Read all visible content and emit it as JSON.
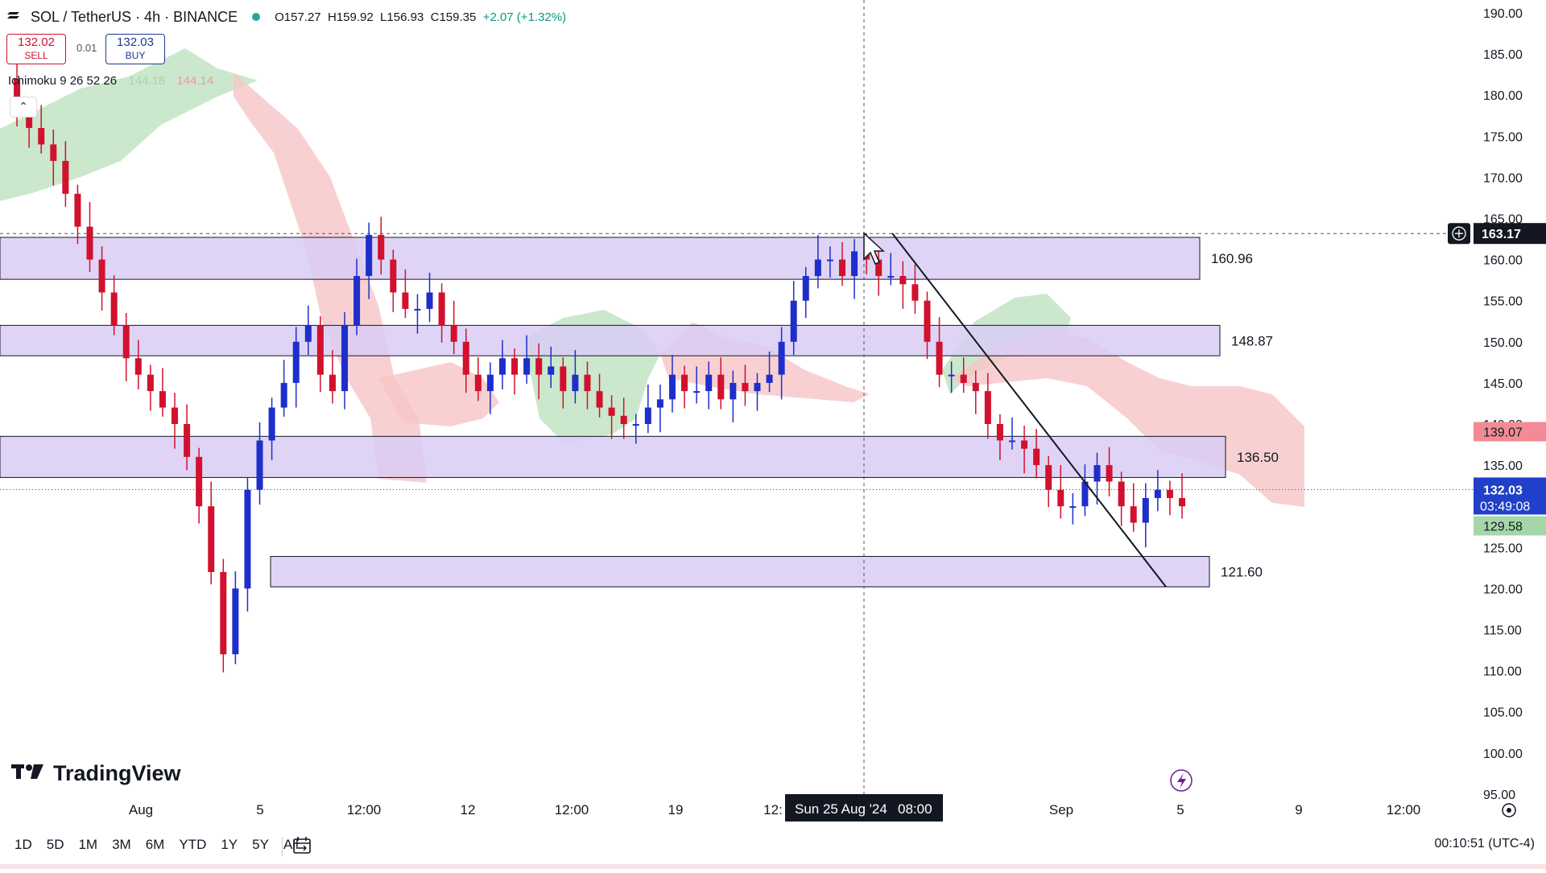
{
  "header": {
    "symbol": "SOL / TetherUS · 4h · BINANCE",
    "open": "O157.27",
    "high": "H159.92",
    "low": "L156.93",
    "close": "C159.35",
    "change": "+2.07 (+1.32%)",
    "status_color": "#26a69a"
  },
  "trade": {
    "sell_price": "132.02",
    "sell_label": "SELL",
    "spread": "0.01",
    "buy_price": "132.03",
    "buy_label": "BUY"
  },
  "indicator": {
    "name": "Ichimoku 9 26 52 26",
    "value_1": "144.18",
    "value_2": "144.14",
    "collapse_icon": "chevron-up-icon"
  },
  "price_axis": {
    "ticks": [
      "190.00",
      "185.00",
      "180.00",
      "175.00",
      "170.00",
      "165.00",
      "160.00",
      "155.00",
      "150.00",
      "145.00",
      "140.00",
      "135.00",
      "130.00",
      "125.00",
      "120.00",
      "115.00",
      "110.00",
      "105.00",
      "100.00",
      "95.00"
    ]
  },
  "time_axis": {
    "ticks": [
      "Aug",
      "5",
      "12:00",
      "12",
      "12:00",
      "19",
      "12:",
      "Sep",
      "5",
      "9",
      "12:00"
    ]
  },
  "crosshair": {
    "price": "163.17",
    "date": "Sun 25 Aug '24",
    "time": "08:00"
  },
  "labels": {
    "ichimoku_red": "139.07",
    "last_price": "132.03",
    "countdown": "03:49:08",
    "ichimoku_green": "129.58"
  },
  "zones": [
    {
      "label": "160.96",
      "top": 162.7,
      "bottom": 157.6
    },
    {
      "label": "148.87",
      "top": 152.0,
      "bottom": 148.3
    },
    {
      "label": "136.50",
      "top": 138.5,
      "bottom": 133.5
    },
    {
      "label": "121.60",
      "top": 123.9,
      "bottom": 120.2
    }
  ],
  "colors": {
    "up": "#1e2ecb",
    "down": "#d1112d",
    "zone_fill": "#d9ccf5",
    "cloud_green": "#b9e0bb",
    "cloud_red": "#f7c4c7",
    "label_red": "#f28b96",
    "label_blue": "#2040c9",
    "label_green": "#a5d6a7"
  },
  "ranges": [
    "1D",
    "5D",
    "1M",
    "3M",
    "6M",
    "YTD",
    "1Y",
    "5Y",
    "All"
  ],
  "calendar_icon": "calendar-range-icon",
  "timezone": "00:10:51 (UTC-4)",
  "brand": "TradingView",
  "brand_icon": "tradingview-logo-icon",
  "lightning_icon": "lightning-icon",
  "settings_icon": "settings-gear-icon",
  "crosshair_add_icon": "plus-circle-icon",
  "chart_data": {
    "type": "candlestick",
    "title": "SOL / TetherUS · 4h · BINANCE",
    "ylim": [
      95,
      190
    ],
    "xlabel": "",
    "ylabel": "",
    "grid": false,
    "trendline": {
      "from": {
        "x": "Sun 25 Aug '24 08:00",
        "y": 163.2
      },
      "to": {
        "x": "Sep 4",
        "y": 120.2
      }
    },
    "ohlc_close_series": [
      182,
      178,
      176,
      174,
      172,
      168,
      164,
      160,
      156,
      152,
      148,
      146,
      144,
      142,
      140,
      136,
      130,
      122,
      112,
      120,
      132,
      138,
      142,
      145,
      150,
      152,
      146,
      144,
      152,
      158,
      163,
      160,
      156,
      154,
      154,
      156,
      152,
      150,
      146,
      144,
      146,
      148,
      146,
      148,
      146,
      147,
      144,
      146,
      144,
      142,
      141,
      140,
      140,
      142,
      143,
      146,
      144,
      144,
      146,
      143,
      145,
      144,
      145,
      146,
      150,
      155,
      158,
      160,
      160,
      158,
      161,
      160,
      158,
      158,
      157,
      155,
      150,
      146,
      146,
      145,
      144,
      140,
      138,
      138,
      137,
      135,
      132,
      130,
      130,
      133,
      135,
      133,
      130,
      128,
      131,
      132,
      131,
      130
    ]
  }
}
